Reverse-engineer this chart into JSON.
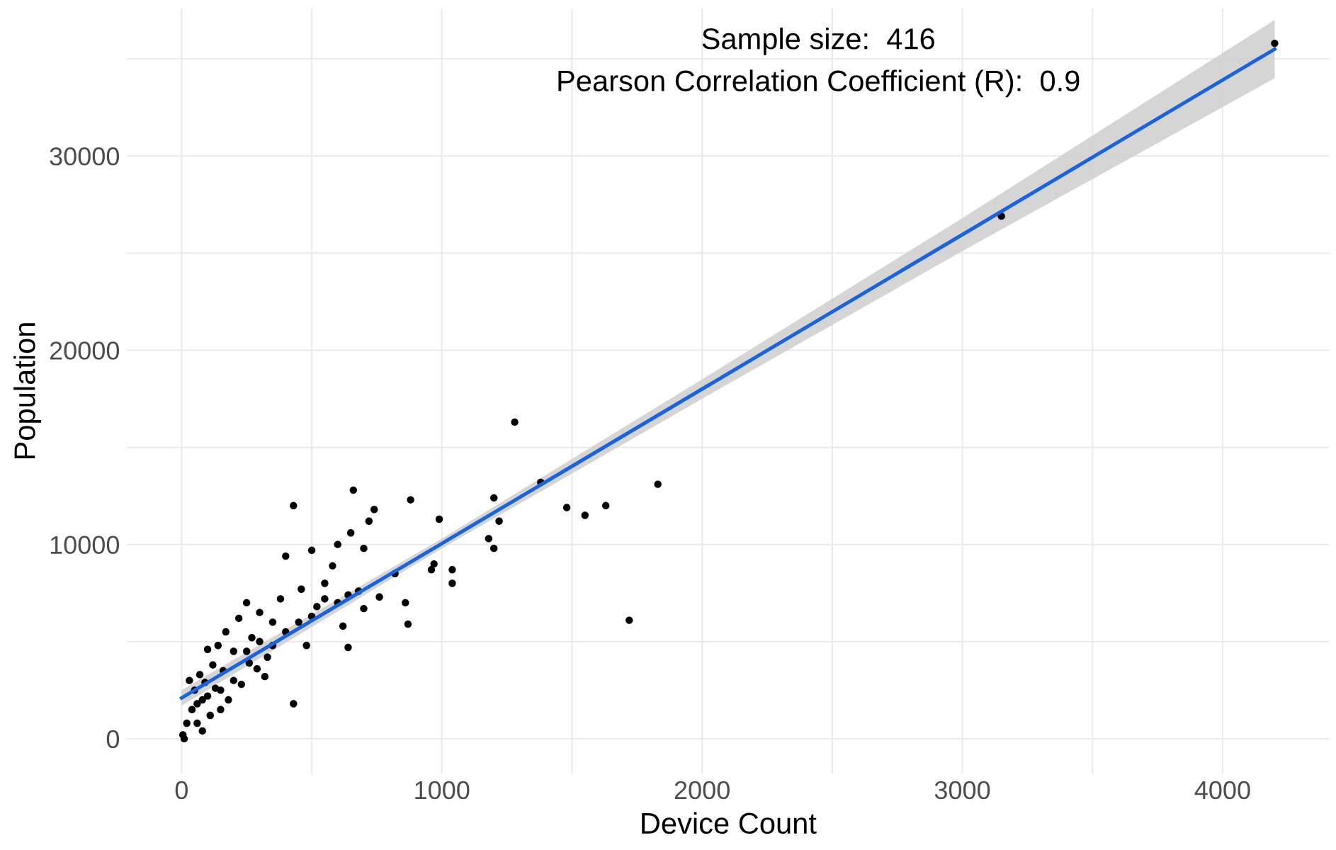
{
  "chart_data": {
    "type": "scatter",
    "xlabel": "Device Count",
    "ylabel": "Population",
    "annotations": [
      "Sample size:  416",
      "Pearson Correlation Coefficient (R):  0.9"
    ],
    "xlim": [
      -210,
      4410
    ],
    "ylim": [
      -1790,
      37590
    ],
    "xticks": [
      0,
      {
        "value": 500,
        "label": null
      },
      1000,
      {
        "value": 1500,
        "label": null
      },
      2000,
      {
        "value": 2500,
        "label": null
      },
      3000,
      {
        "value": 3500,
        "label": null
      },
      4000
    ],
    "yticks": [
      0,
      {
        "value": 5000,
        "label": null
      },
      10000,
      {
        "value": 15000,
        "label": null
      },
      20000,
      {
        "value": 25000,
        "label": null
      },
      30000,
      {
        "value": 35000,
        "label": null
      }
    ],
    "grid": true,
    "marker": "circle",
    "series": [
      {
        "color": "#000000",
        "x": [
          4200,
          3150,
          1280,
          1830,
          1720,
          1630,
          1550,
          1480,
          1380,
          1200,
          1220,
          1200,
          1180,
          1040,
          1040,
          990,
          970,
          960,
          880,
          870,
          860,
          820,
          740,
          720,
          700,
          660,
          650,
          640,
          640,
          600,
          580,
          550,
          500,
          460,
          430,
          430,
          400,
          380,
          350,
          330,
          300,
          290,
          270,
          250,
          230,
          220,
          200,
          180,
          170,
          160,
          150,
          140,
          130,
          120,
          110,
          100,
          90,
          80,
          70,
          60,
          50,
          40,
          30,
          20,
          10,
          5,
          80,
          300,
          350,
          400,
          450,
          500,
          550,
          600,
          680,
          700,
          760,
          260,
          320,
          200,
          150,
          100,
          60,
          250,
          480,
          520,
          620
        ],
        "values": [
          35800,
          26900,
          16300,
          13100,
          6100,
          12000,
          11500,
          11900,
          13200,
          12400,
          11200,
          9800,
          10300,
          8000,
          8700,
          11300,
          9000,
          8700,
          12300,
          5900,
          7000,
          8500,
          11800,
          11200,
          9800,
          12800,
          10600,
          7400,
          4700,
          10000,
          8900,
          8000,
          9700,
          7700,
          12000,
          1800,
          9400,
          7200,
          6000,
          4200,
          6500,
          3600,
          5200,
          7000,
          2800,
          6200,
          4500,
          2000,
          5500,
          3500,
          1500,
          4800,
          2600,
          3800,
          1200,
          4600,
          2900,
          2000,
          3300,
          800,
          2500,
          1500,
          3000,
          800,
          0,
          200,
          400,
          5000,
          4800,
          5500,
          6000,
          6300,
          7200,
          7000,
          7600,
          6700,
          7300,
          3900,
          3200,
          3000,
          2500,
          2200,
          1800,
          4500,
          4800,
          6800,
          5800
        ]
      },
      {
        "type": "line",
        "color": "#1a63e0",
        "line_style": "solid",
        "marker": "none",
        "x": [
          0,
          1000,
          2000,
          3000,
          4200
        ],
        "values": [
          2100,
          10050,
          18000,
          25950,
          35500
        ],
        "lower": [
          1700,
          9800,
          17500,
          25100,
          34000
        ],
        "upper": [
          2500,
          10300,
          18500,
          26800,
          37000
        ]
      }
    ]
  }
}
